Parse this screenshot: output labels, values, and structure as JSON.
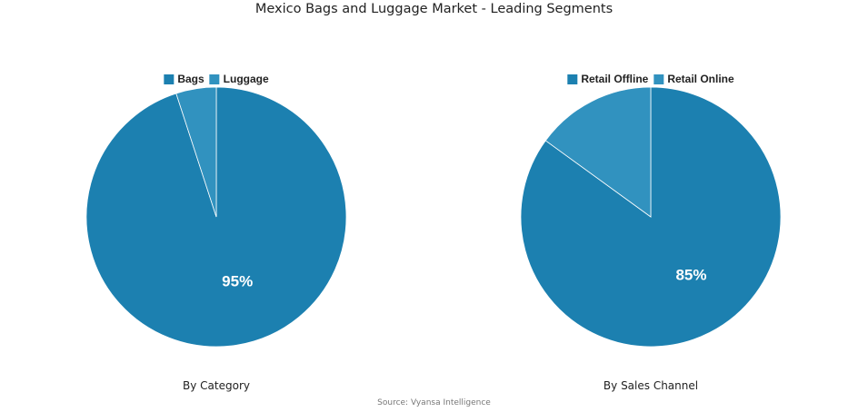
{
  "title": "Mexico Bags and Luggage Market - Leading Segments",
  "source": "Source: Vyansa Intelligence",
  "colors": [
    "#1c80b0",
    "#3192bf"
  ],
  "chart_data": [
    {
      "type": "pie",
      "subtitle": "By Category",
      "labels": [
        "Bags",
        "Luggage"
      ],
      "values": [
        95,
        5
      ],
      "data_labels": [
        "95%",
        ""
      ],
      "legend": "top"
    },
    {
      "type": "pie",
      "subtitle": "By Sales Channel",
      "labels": [
        "Retail Offline",
        "Retail Online"
      ],
      "values": [
        85,
        15
      ],
      "data_labels": [
        "85%",
        ""
      ],
      "legend": "top"
    }
  ]
}
